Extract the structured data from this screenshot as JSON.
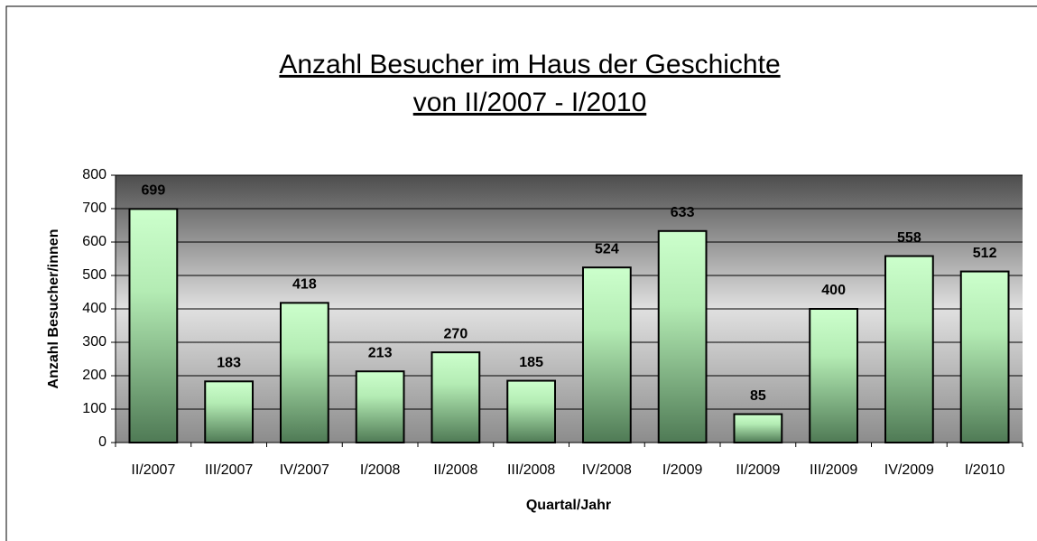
{
  "chart_data": {
    "type": "bar",
    "title": "Anzahl Besucher im Haus der Geschichte",
    "subtitle": "von II/2007 - I/2010",
    "x_label": "Quartal/Jahr",
    "y_label": "Anzahl Besucher/innen",
    "categories": [
      "II/2007",
      "III/2007",
      "IV/2007",
      "I/2008",
      "II/2008",
      "III/2008",
      "IV/2008",
      "I/2009",
      "II/2009",
      "III/2009",
      "IV/2009",
      "I/2010"
    ],
    "values": [
      699,
      183,
      418,
      213,
      270,
      185,
      524,
      633,
      85,
      400,
      558,
      512
    ],
    "ylim": [
      0,
      800
    ],
    "yticks": [
      0,
      100,
      200,
      300,
      400,
      500,
      600,
      700,
      800
    ],
    "grid": true
  }
}
